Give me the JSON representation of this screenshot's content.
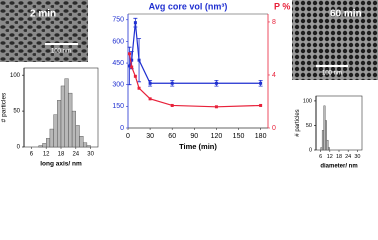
{
  "chart_data": [
    {
      "type": "line",
      "title": "Avg core vol (nm³)",
      "y2_title": "P %",
      "xlabel": "Time (min)",
      "x": [
        2,
        5,
        10,
        15,
        30,
        60,
        120,
        180
      ],
      "xlim": [
        0,
        190
      ],
      "xticks": [
        0,
        30,
        60,
        90,
        120,
        150,
        180
      ],
      "ylim": [
        0,
        790
      ],
      "yticks": [
        0,
        150,
        300,
        450,
        600,
        750
      ],
      "y2lim": [
        0,
        8.6
      ],
      "y2ticks": [
        0,
        4,
        8
      ],
      "series": [
        {
          "color": "#1f2fd0",
          "values": [
            430,
            470,
            730,
            470,
            310,
            310,
            310,
            310
          ],
          "errors": [
            130,
            60,
            30,
            150,
            20,
            20,
            20,
            20
          ]
        },
        {
          "color": "#e8213a",
          "axis": "y2",
          "values": [
            5.6,
            4.6,
            3.9,
            3.0,
            2.2,
            1.7,
            1.6,
            1.7
          ]
        }
      ]
    },
    {
      "type": "histogram",
      "ylabel": "# particles",
      "xlabel": "long axis/ nm",
      "bins": [
        9,
        10.5,
        12,
        13.5,
        15,
        16.5,
        18,
        19.5,
        21,
        22.5,
        24,
        25.5,
        27,
        28.5,
        30
      ],
      "values": [
        2,
        5,
        12,
        25,
        45,
        65,
        85,
        95,
        75,
        50,
        30,
        15,
        6,
        2
      ],
      "color": "#b8b8b8",
      "xlim": [
        3,
        33
      ],
      "xticks": [
        6,
        12,
        18,
        24,
        30
      ],
      "ylim": [
        0,
        110
      ],
      "yticks": [
        0,
        50,
        100
      ]
    },
    {
      "type": "histogram",
      "ylabel": "# particles",
      "xlabel": "diameter/ nm",
      "bins": [
        6,
        7,
        8,
        9,
        10,
        11,
        12
      ],
      "values": [
        5,
        40,
        90,
        60,
        20,
        5
      ],
      "color": "#b8b8b8",
      "xlim": [
        3,
        33
      ],
      "xticks": [
        6,
        12,
        18,
        24,
        30
      ],
      "ylim": [
        0,
        110
      ],
      "yticks": [
        0,
        50,
        100
      ]
    }
  ],
  "images": [
    {
      "label": "2 min",
      "scale_bar": "100 nm"
    },
    {
      "label": "60 min",
      "scale_bar": "100 nm"
    }
  ]
}
